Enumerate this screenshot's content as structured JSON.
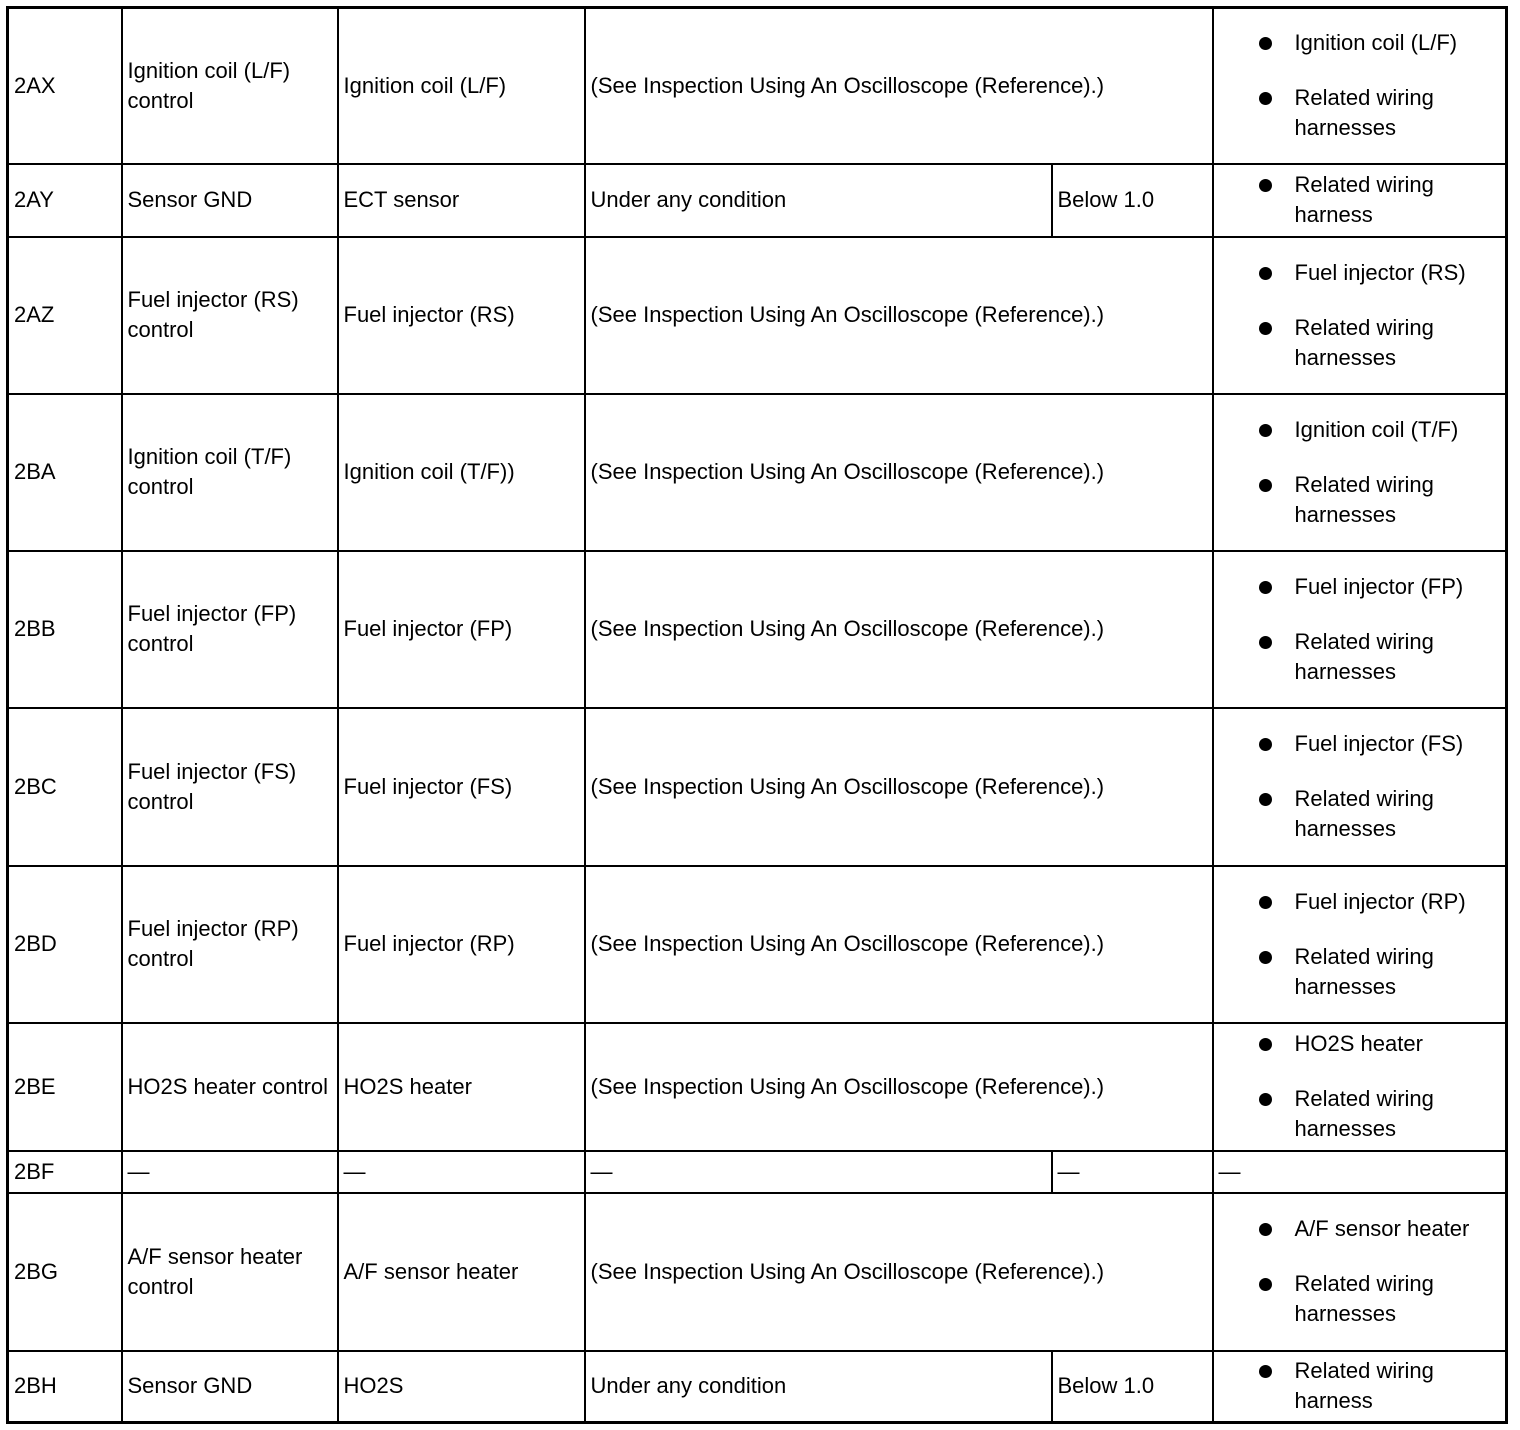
{
  "rows": [
    {
      "terminal": "2AX",
      "description": "Ignition coil (L/F) control",
      "connection": "Ignition coil (L/F)",
      "condition": "(See Inspection Using An Oscilloscope (Reference).)",
      "value": null,
      "items": [
        "Ignition coil (L/F)",
        "Related wiring harnesses"
      ]
    },
    {
      "terminal": "2AY",
      "description": "Sensor GND",
      "connection": "ECT sensor",
      "condition": "Under any condition",
      "value": "Below 1.0",
      "items": [
        "Related wiring harness"
      ]
    },
    {
      "terminal": "2AZ",
      "description": "Fuel injector (RS) control",
      "connection": "Fuel injector (RS)",
      "condition": "(See Inspection Using An Oscilloscope (Reference).)",
      "value": null,
      "items": [
        "Fuel injector (RS)",
        "Related wiring harnesses"
      ]
    },
    {
      "terminal": "2BA",
      "description": "Ignition coil (T/F) control",
      "connection": "Ignition coil (T/F))",
      "condition": "(See Inspection Using An Oscilloscope (Reference).)",
      "value": null,
      "items": [
        "Ignition coil (T/F)",
        "Related wiring harnesses"
      ]
    },
    {
      "terminal": "2BB",
      "description": "Fuel injector (FP) control",
      "connection": "Fuel injector (FP)",
      "condition": "(See Inspection Using An Oscilloscope (Reference).)",
      "value": null,
      "items": [
        "Fuel injector (FP)",
        "Related wiring harnesses"
      ]
    },
    {
      "terminal": "2BC",
      "description": "Fuel injector (FS) control",
      "connection": "Fuel injector (FS)",
      "condition": "(See Inspection Using An Oscilloscope (Reference).)",
      "value": null,
      "items": [
        "Fuel injector (FS)",
        "Related wiring harnesses"
      ]
    },
    {
      "terminal": "2BD",
      "description": "Fuel injector (RP) control",
      "connection": "Fuel injector (RP)",
      "condition": "(See Inspection Using An Oscilloscope (Reference).)",
      "value": null,
      "items": [
        "Fuel injector (RP)",
        "Related wiring harnesses"
      ]
    },
    {
      "terminal": "2BE",
      "description": "HO2S heater control",
      "connection": "HO2S heater",
      "condition": "(See Inspection Using An Oscilloscope (Reference).)",
      "value": null,
      "items": [
        "HO2S heater",
        "Related wiring harnesses"
      ]
    },
    {
      "terminal": "2BF",
      "description": "—",
      "connection": "—",
      "condition": "—",
      "value": "—",
      "items": [],
      "text": "—"
    },
    {
      "terminal": "2BG",
      "description": "A/F sensor heater control",
      "connection": "A/F sensor heater",
      "condition": "(See Inspection Using An Oscilloscope (Reference).)",
      "value": null,
      "items": [
        "A/F sensor heater",
        "Related wiring harnesses"
      ]
    },
    {
      "terminal": "2BH",
      "description": "Sensor GND",
      "connection": "HO2S",
      "condition": "Under any condition",
      "value": "Below 1.0",
      "items": [
        "Related wiring harness"
      ]
    }
  ]
}
